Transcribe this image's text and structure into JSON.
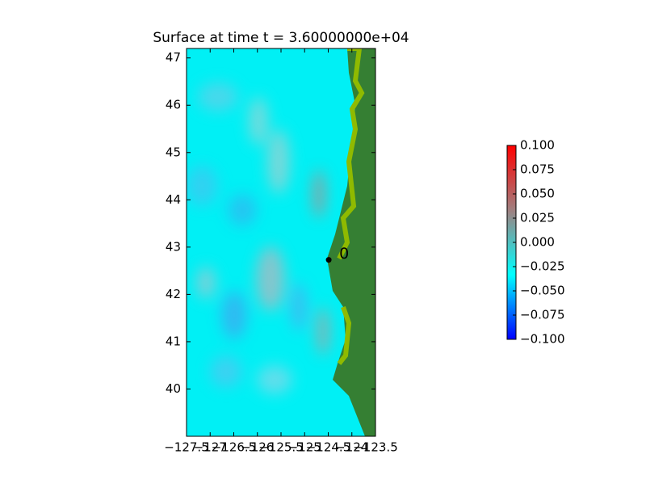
{
  "chart_data": {
    "type": "heatmap",
    "title": "Surface at time t = 3.60000000e+04",
    "xlim": [
      -127.5,
      -123.5
    ],
    "ylim": [
      39.0,
      47.2
    ],
    "xticks": [
      {
        "value": -127.5,
        "label": "−127.5"
      },
      {
        "value": -127,
        "label": "−127"
      },
      {
        "value": -126.5,
        "label": "−126.5"
      },
      {
        "value": -126,
        "label": "−126"
      },
      {
        "value": -125.5,
        "label": "−125.5"
      },
      {
        "value": -125,
        "label": "−125"
      },
      {
        "value": -124.5,
        "label": "−124.5"
      },
      {
        "value": -124,
        "label": "−124"
      },
      {
        "value": -123.5,
        "label": "−123.5"
      }
    ],
    "yticks": [
      40,
      41,
      42,
      43,
      44,
      45,
      46,
      47
    ],
    "gauges": [
      {
        "label": "0",
        "x": -124.49,
        "y": 42.73
      }
    ],
    "colorbar": {
      "lim": [
        -0.1,
        0.1
      ],
      "colors": [
        "#0000ff",
        "#00ffff",
        "#a08080",
        "#ff0000"
      ],
      "ticks": [
        {
          "value": 0.1,
          "label": "0.100"
        },
        {
          "value": 0.075,
          "label": "0.075"
        },
        {
          "value": 0.05,
          "label": "0.050"
        },
        {
          "value": 0.025,
          "label": "0.025"
        },
        {
          "value": 0,
          "label": "0.000"
        },
        {
          "value": -0.025,
          "label": "−0.025"
        },
        {
          "value": -0.05,
          "label": "−0.050"
        },
        {
          "value": -0.075,
          "label": "−0.075"
        },
        {
          "value": -0.1,
          "label": "−0.100"
        }
      ]
    }
  }
}
